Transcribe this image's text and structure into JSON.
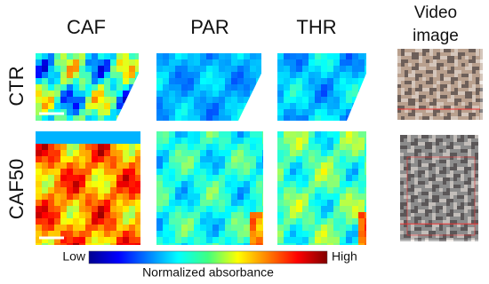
{
  "columns": [
    "CAF",
    "PAR",
    "THR"
  ],
  "video_header": [
    "Video",
    "image"
  ],
  "rows": [
    "CTR",
    "CAF50"
  ],
  "colorbar": {
    "low": "Low",
    "label": "Normalized absorbance",
    "high": "High"
  }
}
